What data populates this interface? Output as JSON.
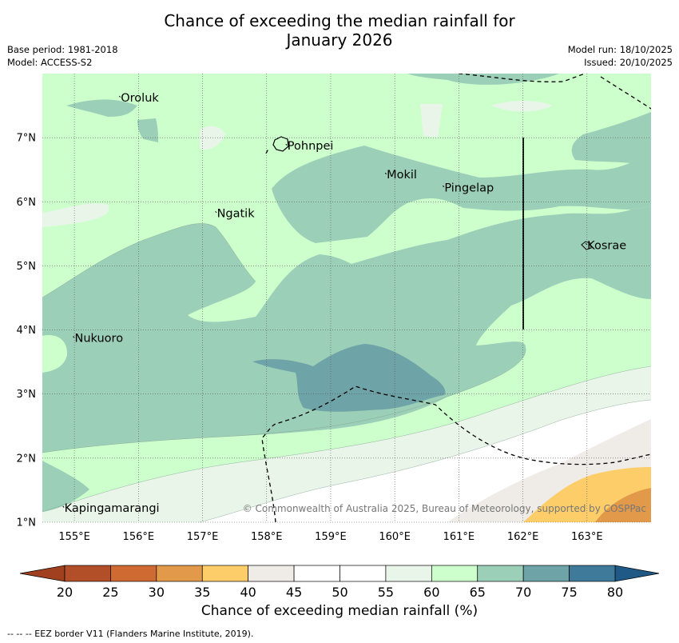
{
  "title": {
    "line1": "Chance of exceeding the median rainfall for",
    "line2": "January 2026"
  },
  "metadata": {
    "base_period": "Base period: 1981-2018",
    "model": "Model: ACCESS-S2",
    "model_run": "Model run: 18/10/2025",
    "issued": "Issued: 20/10/2025"
  },
  "map": {
    "lon_range": [
      154.5,
      164.0
    ],
    "lat_range": [
      1.0,
      8.0
    ],
    "lat_ticks": [
      "1°N",
      "2°N",
      "3°N",
      "4°N",
      "5°N",
      "6°N",
      "7°N"
    ],
    "lon_ticks": [
      "155°E",
      "156°E",
      "157°E",
      "158°E",
      "159°E",
      "160°E",
      "161°E",
      "162°E",
      "163°E"
    ],
    "places": [
      {
        "name": "Oroluk",
        "lon": 155.7,
        "lat": 7.6
      },
      {
        "name": "Pohnpei",
        "lon": 158.3,
        "lat": 6.85
      },
      {
        "name": "Mokil",
        "lon": 159.85,
        "lat": 6.4
      },
      {
        "name": "Pingelap",
        "lon": 160.75,
        "lat": 6.2
      },
      {
        "name": "Ngatik",
        "lon": 157.2,
        "lat": 5.8
      },
      {
        "name": "Kosrae",
        "lon": 162.98,
        "lat": 5.3
      },
      {
        "name": "Nukuoro",
        "lon": 154.98,
        "lat": 3.85
      },
      {
        "name": "Kapingamarangi",
        "lon": 154.82,
        "lat": 1.2
      }
    ],
    "copyright": "© Commonwealth of Australia 2025, Bureau of Meteorology, supported by COSPPac"
  },
  "colorbar": {
    "ticks": [
      "20",
      "25",
      "30",
      "35",
      "40",
      "45",
      "50",
      "55",
      "60",
      "65",
      "70",
      "75",
      "80"
    ],
    "label": "Chance of exceeding median rainfall (%)",
    "under_color": "#a0401f",
    "over_color": "#1f5a87",
    "colors": [
      "#b24e28",
      "#cf6a33",
      "#e2994a",
      "#fdcd6a",
      "#efebe6",
      "#ffffff",
      "#ffffff",
      "#eaf5e9",
      "#ccffcc",
      "#9ccfb8",
      "#6ea4a8",
      "#3f7a9a"
    ]
  },
  "footnote": "--  --  -- EEZ border V11 (Flanders Marine Institute, 2019)."
}
